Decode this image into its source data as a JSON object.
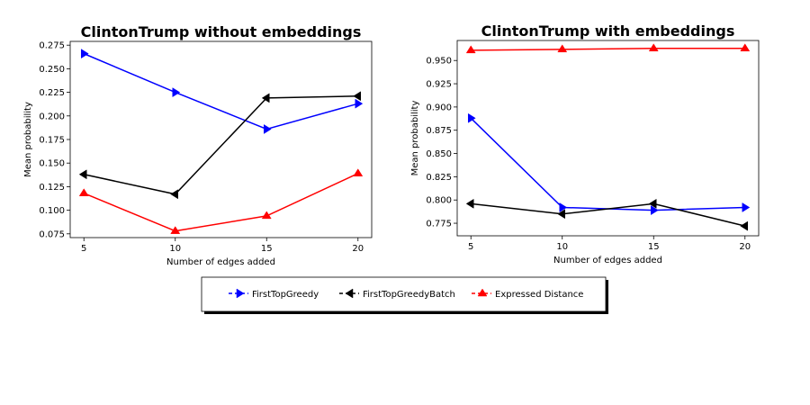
{
  "chart_data": [
    {
      "type": "line",
      "title": "ClintonTrump without embeddings",
      "xlabel": "Number of edges added",
      "ylabel": "Mean probability",
      "x": [
        5,
        10,
        15,
        20
      ],
      "xlim": [
        4.25,
        20.75
      ],
      "ylim": [
        0.071,
        0.279
      ],
      "xticks": [
        "5",
        "10",
        "15",
        "20"
      ],
      "yticks": [
        "0.075",
        "0.100",
        "0.125",
        "0.150",
        "0.175",
        "0.200",
        "0.225",
        "0.250",
        "0.275"
      ],
      "grid": false,
      "series": [
        {
          "name": "FirstTopGreedy",
          "color": "#0000ff",
          "marker": "triangle-right",
          "values": [
            0.266,
            0.225,
            0.186,
            0.213
          ]
        },
        {
          "name": "FirstTopGreedyBatch",
          "color": "#000000",
          "marker": "triangle-left",
          "values": [
            0.138,
            0.117,
            0.219,
            0.221
          ]
        },
        {
          "name": "Expressed Distance",
          "color": "#ff0000",
          "marker": "triangle-up",
          "values": [
            0.118,
            0.078,
            0.094,
            0.139
          ]
        }
      ]
    },
    {
      "type": "line",
      "title": "ClintonTrump with embeddings",
      "xlabel": "Number of edges added",
      "ylabel": "Mean probability",
      "x": [
        5,
        10,
        15,
        20
      ],
      "xlim": [
        4.25,
        20.75
      ],
      "ylim": [
        0.7615,
        0.9715
      ],
      "xticks": [
        "5",
        "10",
        "15",
        "20"
      ],
      "yticks": [
        "0.775",
        "0.800",
        "0.825",
        "0.850",
        "0.875",
        "0.900",
        "0.925",
        "0.950"
      ],
      "grid": false,
      "series": [
        {
          "name": "FirstTopGreedy",
          "color": "#0000ff",
          "marker": "triangle-right",
          "values": [
            0.888,
            0.792,
            0.789,
            0.792
          ]
        },
        {
          "name": "FirstTopGreedyBatch",
          "color": "#000000",
          "marker": "triangle-left",
          "values": [
            0.796,
            0.785,
            0.796,
            0.772
          ]
        },
        {
          "name": "Expressed Distance",
          "color": "#ff0000",
          "marker": "triangle-up",
          "values": [
            0.961,
            0.962,
            0.963,
            0.963
          ]
        }
      ]
    }
  ],
  "legend": {
    "placement": "bottom-center",
    "items": [
      {
        "label": "FirstTopGreedy",
        "color": "#0000ff",
        "marker": "triangle-right"
      },
      {
        "label": "FirstTopGreedyBatch",
        "color": "#000000",
        "marker": "triangle-left"
      },
      {
        "label": "Expressed Distance",
        "color": "#ff0000",
        "marker": "triangle-up"
      }
    ]
  }
}
